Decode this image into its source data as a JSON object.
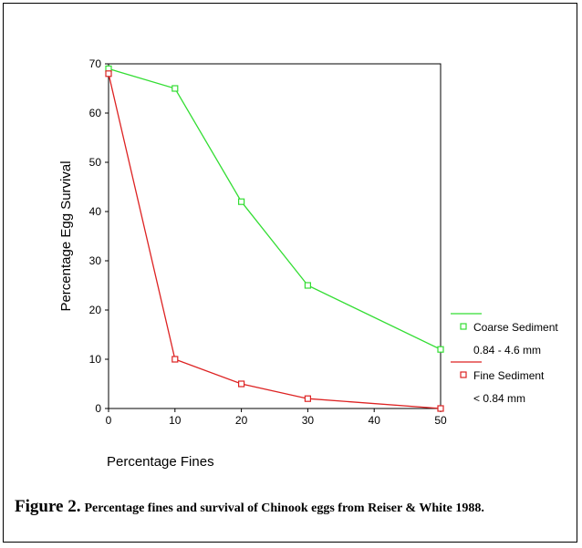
{
  "chart_data": {
    "type": "line",
    "xlabel": "Percentage Fines",
    "ylabel": "Percentage Egg Survival",
    "xlim": [
      0,
      50
    ],
    "ylim": [
      0,
      70
    ],
    "x_ticks": [
      "0",
      "10",
      "20",
      "30",
      "40",
      "50"
    ],
    "y_ticks": [
      "0",
      "10",
      "20",
      "30",
      "40",
      "50",
      "60",
      "70"
    ],
    "grid": false,
    "legend_position": "right",
    "series": [
      {
        "name": "Coarse Sediment",
        "sublabel": "0.84 - 4.6 mm",
        "color": "#33dd33",
        "x": [
          0,
          10,
          20,
          30,
          50
        ],
        "y": [
          69,
          65,
          42,
          25,
          12
        ]
      },
      {
        "name": "Fine Sediment",
        "sublabel": "< 0.84 mm",
        "color": "#dd2222",
        "x": [
          0,
          10,
          20,
          30,
          50
        ],
        "y": [
          68,
          10,
          5,
          2,
          0
        ]
      }
    ]
  },
  "caption": {
    "lead": "Figure 2.",
    "rest": "Percentage fines and survival of Chinook eggs from Reiser & White 1988."
  }
}
